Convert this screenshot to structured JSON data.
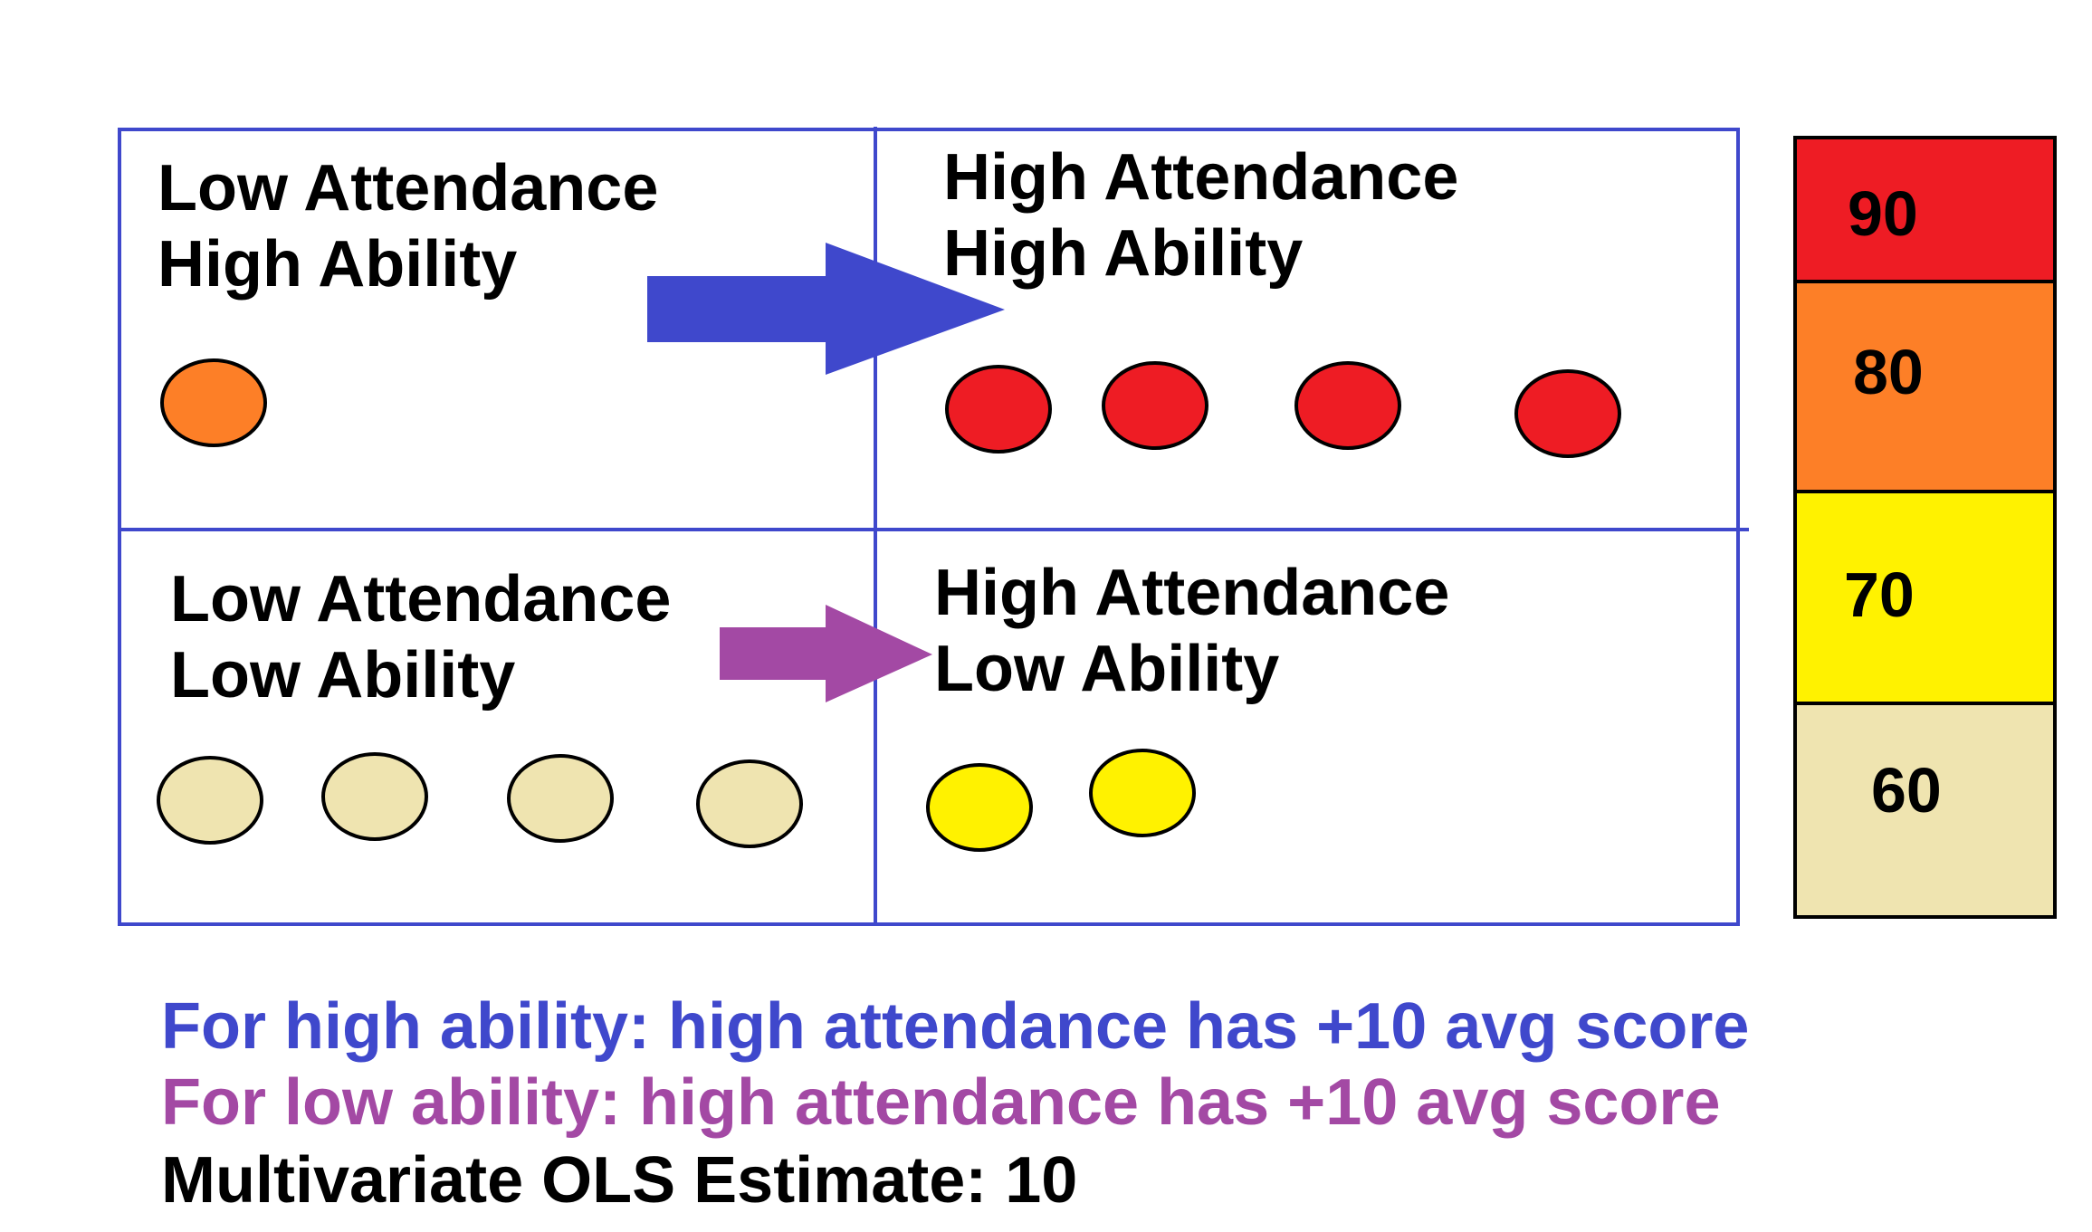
{
  "quadrants": {
    "top_left": {
      "line1": "Low Attendance",
      "line2": "High Ability"
    },
    "top_right": {
      "line1": "High Attendance",
      "line2": "High Ability"
    },
    "bottom_left": {
      "line1": "Low Attendance",
      "line2": "Low Ability"
    },
    "bottom_right": {
      "line1": "High Attendance",
      "line2": "Low Ability"
    }
  },
  "legend": [
    {
      "label": "90",
      "color": "#ee1c24"
    },
    {
      "label": "80",
      "color": "#fd7f27"
    },
    {
      "label": "70",
      "color": "#fff200"
    },
    {
      "label": "60",
      "color": "#efe4b0"
    }
  ],
  "dots": {
    "top_left": {
      "count": 1,
      "score": 80
    },
    "top_right": {
      "count": 4,
      "score": 90
    },
    "bottom_left": {
      "count": 4,
      "score": 60
    },
    "bottom_right": {
      "count": 2,
      "score": 70
    }
  },
  "arrows": {
    "high_ability_color": "#3f48cc",
    "low_ability_color": "#a349a4"
  },
  "notes": {
    "high_ability": "For high ability: high attendance has +10 avg score",
    "low_ability": "For low ability: high attendance has +10 avg score",
    "estimate": "Multivariate OLS Estimate: 10"
  },
  "colors": {
    "grid": "#3f48cc",
    "high_note": "#3f48cc",
    "low_note": "#a349a4",
    "estimate_note": "#000000"
  }
}
